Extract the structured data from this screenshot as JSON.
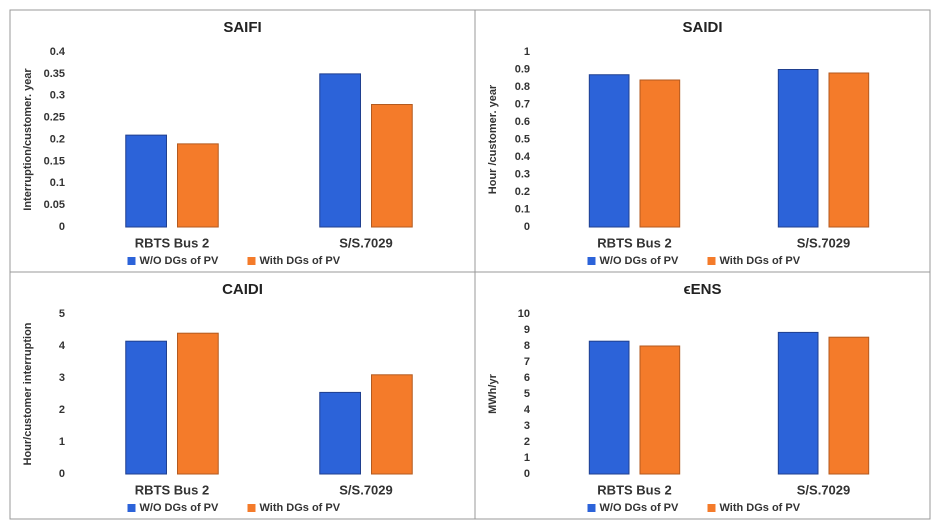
{
  "chart_data": [
    {
      "type": "bar",
      "title": "SAIFI",
      "y_label": "Interruption/customer. year",
      "categories": [
        "RBTS Bus 2",
        "S/S.7029"
      ],
      "series": [
        {
          "name": "W/O DGs of PV",
          "color": "#2c63d9",
          "values": [
            0.21,
            0.35
          ]
        },
        {
          "name": "With DGs of PV",
          "color": "#f47b2a",
          "values": [
            0.19,
            0.28
          ]
        }
      ],
      "ylim": [
        0,
        0.4
      ],
      "yticks": [
        0,
        0.05,
        0.1,
        0.15,
        0.2,
        0.25,
        0.3,
        0.35,
        0.4
      ],
      "legend": "bottom"
    },
    {
      "type": "bar",
      "title": "SAIDI",
      "y_label": "Hour /customer. year",
      "categories": [
        "RBTS Bus 2",
        "S/S.7029"
      ],
      "series": [
        {
          "name": "W/O DGs of PV",
          "color": "#2c63d9",
          "values": [
            0.87,
            0.9
          ]
        },
        {
          "name": "With DGs of PV",
          "color": "#f47b2a",
          "values": [
            0.84,
            0.88
          ]
        }
      ],
      "ylim": [
        0,
        1
      ],
      "yticks": [
        0,
        0.1,
        0.2,
        0.3,
        0.4,
        0.5,
        0.6,
        0.7,
        0.8,
        0.9,
        1
      ],
      "legend": "bottom"
    },
    {
      "type": "bar",
      "title": "CAIDI",
      "y_label": "Hour/customer interruption",
      "categories": [
        "RBTS Bus 2",
        "S/S.7029"
      ],
      "series": [
        {
          "name": "W/O DGs of PV",
          "color": "#2c63d9",
          "values": [
            4.15,
            2.55
          ]
        },
        {
          "name": "With DGs of PV",
          "color": "#f47b2a",
          "values": [
            4.4,
            3.1
          ]
        }
      ],
      "ylim": [
        0,
        5
      ],
      "yticks": [
        0,
        1,
        2,
        3,
        4,
        5
      ],
      "legend": "bottom"
    },
    {
      "type": "bar",
      "title": "ϵENS",
      "y_label": "MWh/yr",
      "categories": [
        "RBTS Bus 2",
        "S/S.7029"
      ],
      "series": [
        {
          "name": "W/O DGs of PV",
          "color": "#2c63d9",
          "values": [
            8.3,
            8.85
          ]
        },
        {
          "name": "With DGs of PV",
          "color": "#f47b2a",
          "values": [
            8.0,
            8.55
          ]
        }
      ],
      "ylim": [
        0,
        10
      ],
      "yticks": [
        0,
        1,
        2,
        3,
        4,
        5,
        6,
        7,
        8,
        9,
        10
      ],
      "legend": "bottom"
    }
  ]
}
